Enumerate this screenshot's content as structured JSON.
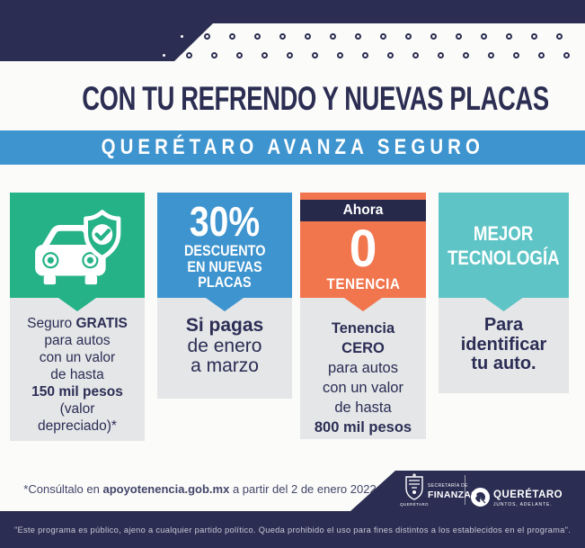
{
  "colors": {
    "navy": "#2b2d52",
    "blue": "#3e94ce",
    "green": "#24b286",
    "orange": "#f1764e",
    "teal": "#5ec4c6",
    "panel_gray": "#e5e6e7",
    "text_navy": "#2b2d55"
  },
  "header": {
    "title": "CON TU REFRENDO Y NUEVAS PLACAS",
    "banner": "QUERÉTARO AVANZA SEGURO"
  },
  "cards": [
    {
      "icon": "car-shield-check-icon",
      "body": {
        "l1a": "Seguro ",
        "l1b": "GRATIS",
        "l2": "para autos",
        "l3": "con un valor",
        "l4": "de hasta",
        "l5": "150 mil pesos",
        "l6": "(valor",
        "l7": "depreciado)*"
      }
    },
    {
      "percent": "30%",
      "lines": [
        "DESCUENTO",
        "EN NUEVAS",
        "PLACAS"
      ],
      "body": {
        "l1": "Si pagas",
        "l2": "de enero",
        "l3": "a marzo"
      }
    },
    {
      "badge": "Ahora",
      "zero": "0",
      "label": "TENENCIA",
      "body": {
        "l1": "Tenencia",
        "l2": "CERO",
        "l3": "para autos",
        "l4": "con un valor",
        "l5": "de hasta",
        "l6": "800 mil pesos"
      }
    },
    {
      "lines": [
        "MEJOR",
        "TECNOLOGÍA"
      ],
      "body": {
        "l1": "Para",
        "l2": "identificar",
        "l3": "tu auto."
      }
    }
  ],
  "footer": {
    "note": {
      "a": "*Consúltalo en ",
      "b": "apoyotenencia.gob.mx",
      "c": " a partir del 2 de enero 2022"
    },
    "disclaimer": "\"Este programa es público, ajeno a cualquier partido político. Queda prohibido el uso para fines distintos a los establecidos en el programa\".",
    "logos": {
      "crest_label": "QUERÉTARO",
      "finanzas_top": "SECRETARÍA DE",
      "finanzas_bottom": "FINANZAS",
      "queretaro": "QUERÉTARO",
      "tagline": "JUNTOS, ADELANTE."
    }
  }
}
